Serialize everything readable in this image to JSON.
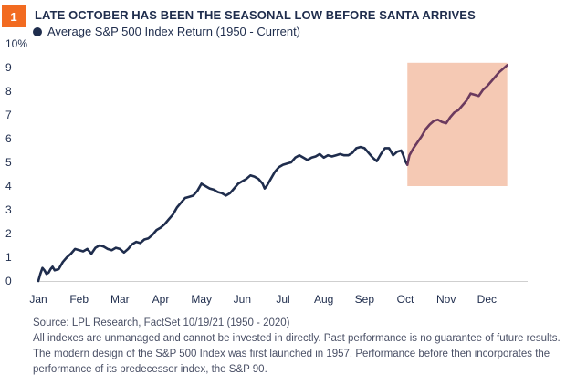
{
  "badge": "1",
  "chart_data": {
    "type": "line",
    "title": "LATE OCTOBER HAS BEEN THE SEASONAL LOW BEFORE SANTA ARRIVES",
    "series": [
      {
        "name": "Average S&P 500 Index Return (1950 - Current)",
        "color": "#1f2d4d",
        "highlight_color": "#6b3a5e",
        "points": [
          [
            0.0,
            0.0
          ],
          [
            0.05,
            0.3
          ],
          [
            0.1,
            0.55
          ],
          [
            0.15,
            0.45
          ],
          [
            0.2,
            0.3
          ],
          [
            0.25,
            0.35
          ],
          [
            0.3,
            0.5
          ],
          [
            0.35,
            0.6
          ],
          [
            0.4,
            0.45
          ],
          [
            0.5,
            0.5
          ],
          [
            0.6,
            0.8
          ],
          [
            0.7,
            1.0
          ],
          [
            0.8,
            1.15
          ],
          [
            0.9,
            1.35
          ],
          [
            1.0,
            1.3
          ],
          [
            1.1,
            1.25
          ],
          [
            1.2,
            1.35
          ],
          [
            1.3,
            1.15
          ],
          [
            1.4,
            1.4
          ],
          [
            1.5,
            1.5
          ],
          [
            1.6,
            1.45
          ],
          [
            1.7,
            1.35
          ],
          [
            1.8,
            1.3
          ],
          [
            1.9,
            1.4
          ],
          [
            2.0,
            1.35
          ],
          [
            2.1,
            1.2
          ],
          [
            2.2,
            1.35
          ],
          [
            2.3,
            1.55
          ],
          [
            2.4,
            1.65
          ],
          [
            2.5,
            1.6
          ],
          [
            2.6,
            1.75
          ],
          [
            2.7,
            1.8
          ],
          [
            2.8,
            1.95
          ],
          [
            2.9,
            2.15
          ],
          [
            3.0,
            2.25
          ],
          [
            3.1,
            2.4
          ],
          [
            3.2,
            2.6
          ],
          [
            3.3,
            2.8
          ],
          [
            3.4,
            3.1
          ],
          [
            3.5,
            3.3
          ],
          [
            3.6,
            3.5
          ],
          [
            3.7,
            3.55
          ],
          [
            3.8,
            3.6
          ],
          [
            3.9,
            3.8
          ],
          [
            4.0,
            4.1
          ],
          [
            4.1,
            4.0
          ],
          [
            4.2,
            3.9
          ],
          [
            4.3,
            3.85
          ],
          [
            4.4,
            3.75
          ],
          [
            4.5,
            3.7
          ],
          [
            4.6,
            3.6
          ],
          [
            4.7,
            3.7
          ],
          [
            4.8,
            3.9
          ],
          [
            4.9,
            4.1
          ],
          [
            5.0,
            4.2
          ],
          [
            5.1,
            4.3
          ],
          [
            5.2,
            4.45
          ],
          [
            5.3,
            4.4
          ],
          [
            5.4,
            4.3
          ],
          [
            5.5,
            4.1
          ],
          [
            5.55,
            3.9
          ],
          [
            5.6,
            4.0
          ],
          [
            5.7,
            4.3
          ],
          [
            5.8,
            4.6
          ],
          [
            5.9,
            4.8
          ],
          [
            6.0,
            4.9
          ],
          [
            6.1,
            4.95
          ],
          [
            6.2,
            5.0
          ],
          [
            6.3,
            5.2
          ],
          [
            6.4,
            5.3
          ],
          [
            6.5,
            5.2
          ],
          [
            6.6,
            5.1
          ],
          [
            6.7,
            5.2
          ],
          [
            6.8,
            5.25
          ],
          [
            6.9,
            5.35
          ],
          [
            7.0,
            5.2
          ],
          [
            7.1,
            5.3
          ],
          [
            7.2,
            5.25
          ],
          [
            7.3,
            5.3
          ],
          [
            7.4,
            5.35
          ],
          [
            7.5,
            5.3
          ],
          [
            7.6,
            5.3
          ],
          [
            7.7,
            5.4
          ],
          [
            7.8,
            5.6
          ],
          [
            7.9,
            5.65
          ],
          [
            8.0,
            5.6
          ],
          [
            8.1,
            5.4
          ],
          [
            8.2,
            5.2
          ],
          [
            8.3,
            5.05
          ],
          [
            8.4,
            5.35
          ],
          [
            8.5,
            5.6
          ],
          [
            8.6,
            5.6
          ],
          [
            8.7,
            5.3
          ],
          [
            8.8,
            5.45
          ],
          [
            8.9,
            5.5
          ],
          [
            8.95,
            5.3
          ],
          [
            9.0,
            5.05
          ],
          [
            9.05,
            4.9
          ],
          [
            9.1,
            5.3
          ],
          [
            9.2,
            5.6
          ],
          [
            9.3,
            5.85
          ],
          [
            9.4,
            6.1
          ],
          [
            9.5,
            6.4
          ],
          [
            9.6,
            6.6
          ],
          [
            9.7,
            6.75
          ],
          [
            9.8,
            6.8
          ],
          [
            9.9,
            6.7
          ],
          [
            10.0,
            6.65
          ],
          [
            10.1,
            6.9
          ],
          [
            10.2,
            7.1
          ],
          [
            10.3,
            7.2
          ],
          [
            10.4,
            7.4
          ],
          [
            10.5,
            7.6
          ],
          [
            10.6,
            7.9
          ],
          [
            10.7,
            7.85
          ],
          [
            10.8,
            7.8
          ],
          [
            10.9,
            8.05
          ],
          [
            11.0,
            8.2
          ],
          [
            11.1,
            8.4
          ],
          [
            11.2,
            8.6
          ],
          [
            11.3,
            8.8
          ],
          [
            11.4,
            8.95
          ],
          [
            11.5,
            9.1
          ]
        ]
      }
    ],
    "highlight_from": 9.05,
    "highlight_range": {
      "x": [
        9.05,
        11.5
      ],
      "y": [
        4.0,
        9.2
      ],
      "color": "#f4c3ac"
    },
    "x_ticks": [
      {
        "label": "Jan",
        "value": 0.0
      },
      {
        "label": "Feb",
        "value": 1.0
      },
      {
        "label": "Mar",
        "value": 2.0
      },
      {
        "label": "Apr",
        "value": 3.0
      },
      {
        "label": "May",
        "value": 4.0
      },
      {
        "label": "Jun",
        "value": 5.0
      },
      {
        "label": "Jul",
        "value": 6.0
      },
      {
        "label": "Aug",
        "value": 7.0
      },
      {
        "label": "Sep",
        "value": 8.0
      },
      {
        "label": "Oct",
        "value": 9.0
      },
      {
        "label": "Nov",
        "value": 10.0
      },
      {
        "label": "Dec",
        "value": 11.0
      }
    ],
    "y_ticks": [
      "0",
      "1",
      "2",
      "3",
      "4",
      "5",
      "6",
      "7",
      "8",
      "9",
      "10%"
    ],
    "xlim": [
      0,
      12
    ],
    "ylim": [
      0,
      10
    ],
    "grid": false,
    "legend_placement": "top-left"
  },
  "notes": [
    "Source: LPL Research, FactSet 10/19/21 (1950 - 2020)",
    "All indexes are unmanaged and cannot be invested in directly. Past performance is no guarantee of future results.",
    "The modern design of the S&P 500 Index was first launched in 1957. Performance before then incorporates the",
    "performance of its  predecessor index, the S&P 90."
  ]
}
